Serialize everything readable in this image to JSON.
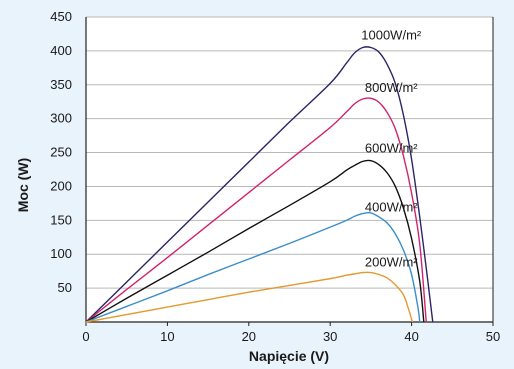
{
  "chart_data": {
    "type": "line",
    "title": "",
    "xlabel": "Napięcie (V)",
    "ylabel": "Moc (W)",
    "xlim": [
      0,
      50
    ],
    "ylim": [
      0,
      450
    ],
    "xticks": [
      0,
      10,
      20,
      30,
      40,
      50
    ],
    "yticks": [
      50,
      100,
      150,
      200,
      250,
      300,
      350,
      400,
      450
    ],
    "grid": "horizontal",
    "legend": "none",
    "series": [
      {
        "label": "1000W/m²",
        "color": "#2a2566",
        "points": [
          [
            0,
            0
          ],
          [
            5,
            59
          ],
          [
            10,
            118
          ],
          [
            15,
            177
          ],
          [
            20,
            236
          ],
          [
            25,
            295
          ],
          [
            30,
            352
          ],
          [
            32,
            382
          ],
          [
            33,
            397
          ],
          [
            34,
            405
          ],
          [
            35,
            405
          ],
          [
            36,
            398
          ],
          [
            37,
            380
          ],
          [
            38,
            352
          ],
          [
            39,
            305
          ],
          [
            40,
            240
          ],
          [
            41,
            155
          ],
          [
            42,
            60
          ],
          [
            42.6,
            0
          ]
        ]
      },
      {
        "label": "800W/m²",
        "color": "#d2236e",
        "points": [
          [
            0,
            0
          ],
          [
            5,
            48
          ],
          [
            10,
            95
          ],
          [
            15,
            143
          ],
          [
            20,
            191
          ],
          [
            25,
            239
          ],
          [
            30,
            287
          ],
          [
            32,
            310
          ],
          [
            33,
            322
          ],
          [
            34,
            329
          ],
          [
            35,
            330
          ],
          [
            36,
            324
          ],
          [
            37,
            309
          ],
          [
            38,
            285
          ],
          [
            39,
            245
          ],
          [
            40,
            190
          ],
          [
            41,
            115
          ],
          [
            41.8,
            0
          ]
        ]
      },
      {
        "label": "600W/m²",
        "color": "#111111",
        "points": [
          [
            0,
            0
          ],
          [
            5,
            35
          ],
          [
            10,
            69
          ],
          [
            15,
            103
          ],
          [
            20,
            138
          ],
          [
            25,
            172
          ],
          [
            30,
            207
          ],
          [
            32,
            224
          ],
          [
            33,
            231
          ],
          [
            34,
            237
          ],
          [
            35,
            238
          ],
          [
            36,
            232
          ],
          [
            37,
            220
          ],
          [
            38,
            200
          ],
          [
            39,
            168
          ],
          [
            40,
            123
          ],
          [
            41,
            60
          ],
          [
            41.5,
            0
          ]
        ]
      },
      {
        "label": "400W/m²",
        "color": "#3b8ecb",
        "points": [
          [
            0,
            0
          ],
          [
            5,
            23
          ],
          [
            10,
            46
          ],
          [
            15,
            70
          ],
          [
            20,
            93
          ],
          [
            25,
            116
          ],
          [
            30,
            140
          ],
          [
            32,
            150
          ],
          [
            33,
            156
          ],
          [
            34,
            160
          ],
          [
            35,
            161
          ],
          [
            36,
            155
          ],
          [
            37,
            146
          ],
          [
            38,
            130
          ],
          [
            39,
            106
          ],
          [
            40,
            70
          ],
          [
            40.8,
            20
          ],
          [
            41,
            0
          ]
        ]
      },
      {
        "label": "200W/m²",
        "color": "#e39a2e",
        "points": [
          [
            0,
            0
          ],
          [
            5,
            11
          ],
          [
            10,
            22
          ],
          [
            15,
            33
          ],
          [
            20,
            44
          ],
          [
            25,
            54
          ],
          [
            30,
            64
          ],
          [
            32,
            69
          ],
          [
            33,
            71
          ],
          [
            34,
            73
          ],
          [
            35,
            73
          ],
          [
            36,
            70
          ],
          [
            37,
            65
          ],
          [
            38,
            55
          ],
          [
            39,
            40
          ],
          [
            39.6,
            20
          ],
          [
            40.1,
            0
          ]
        ]
      }
    ],
    "annotations": [
      {
        "text": "1000W/m²",
        "x": 37.5,
        "y": 417
      },
      {
        "text": "800W/m²",
        "x": 37.5,
        "y": 339
      },
      {
        "text": "600W/m²",
        "x": 37.5,
        "y": 250
      },
      {
        "text": "400W/m²",
        "x": 37.5,
        "y": 163
      },
      {
        "text": "200W/m²",
        "x": 37.5,
        "y": 82
      }
    ]
  }
}
